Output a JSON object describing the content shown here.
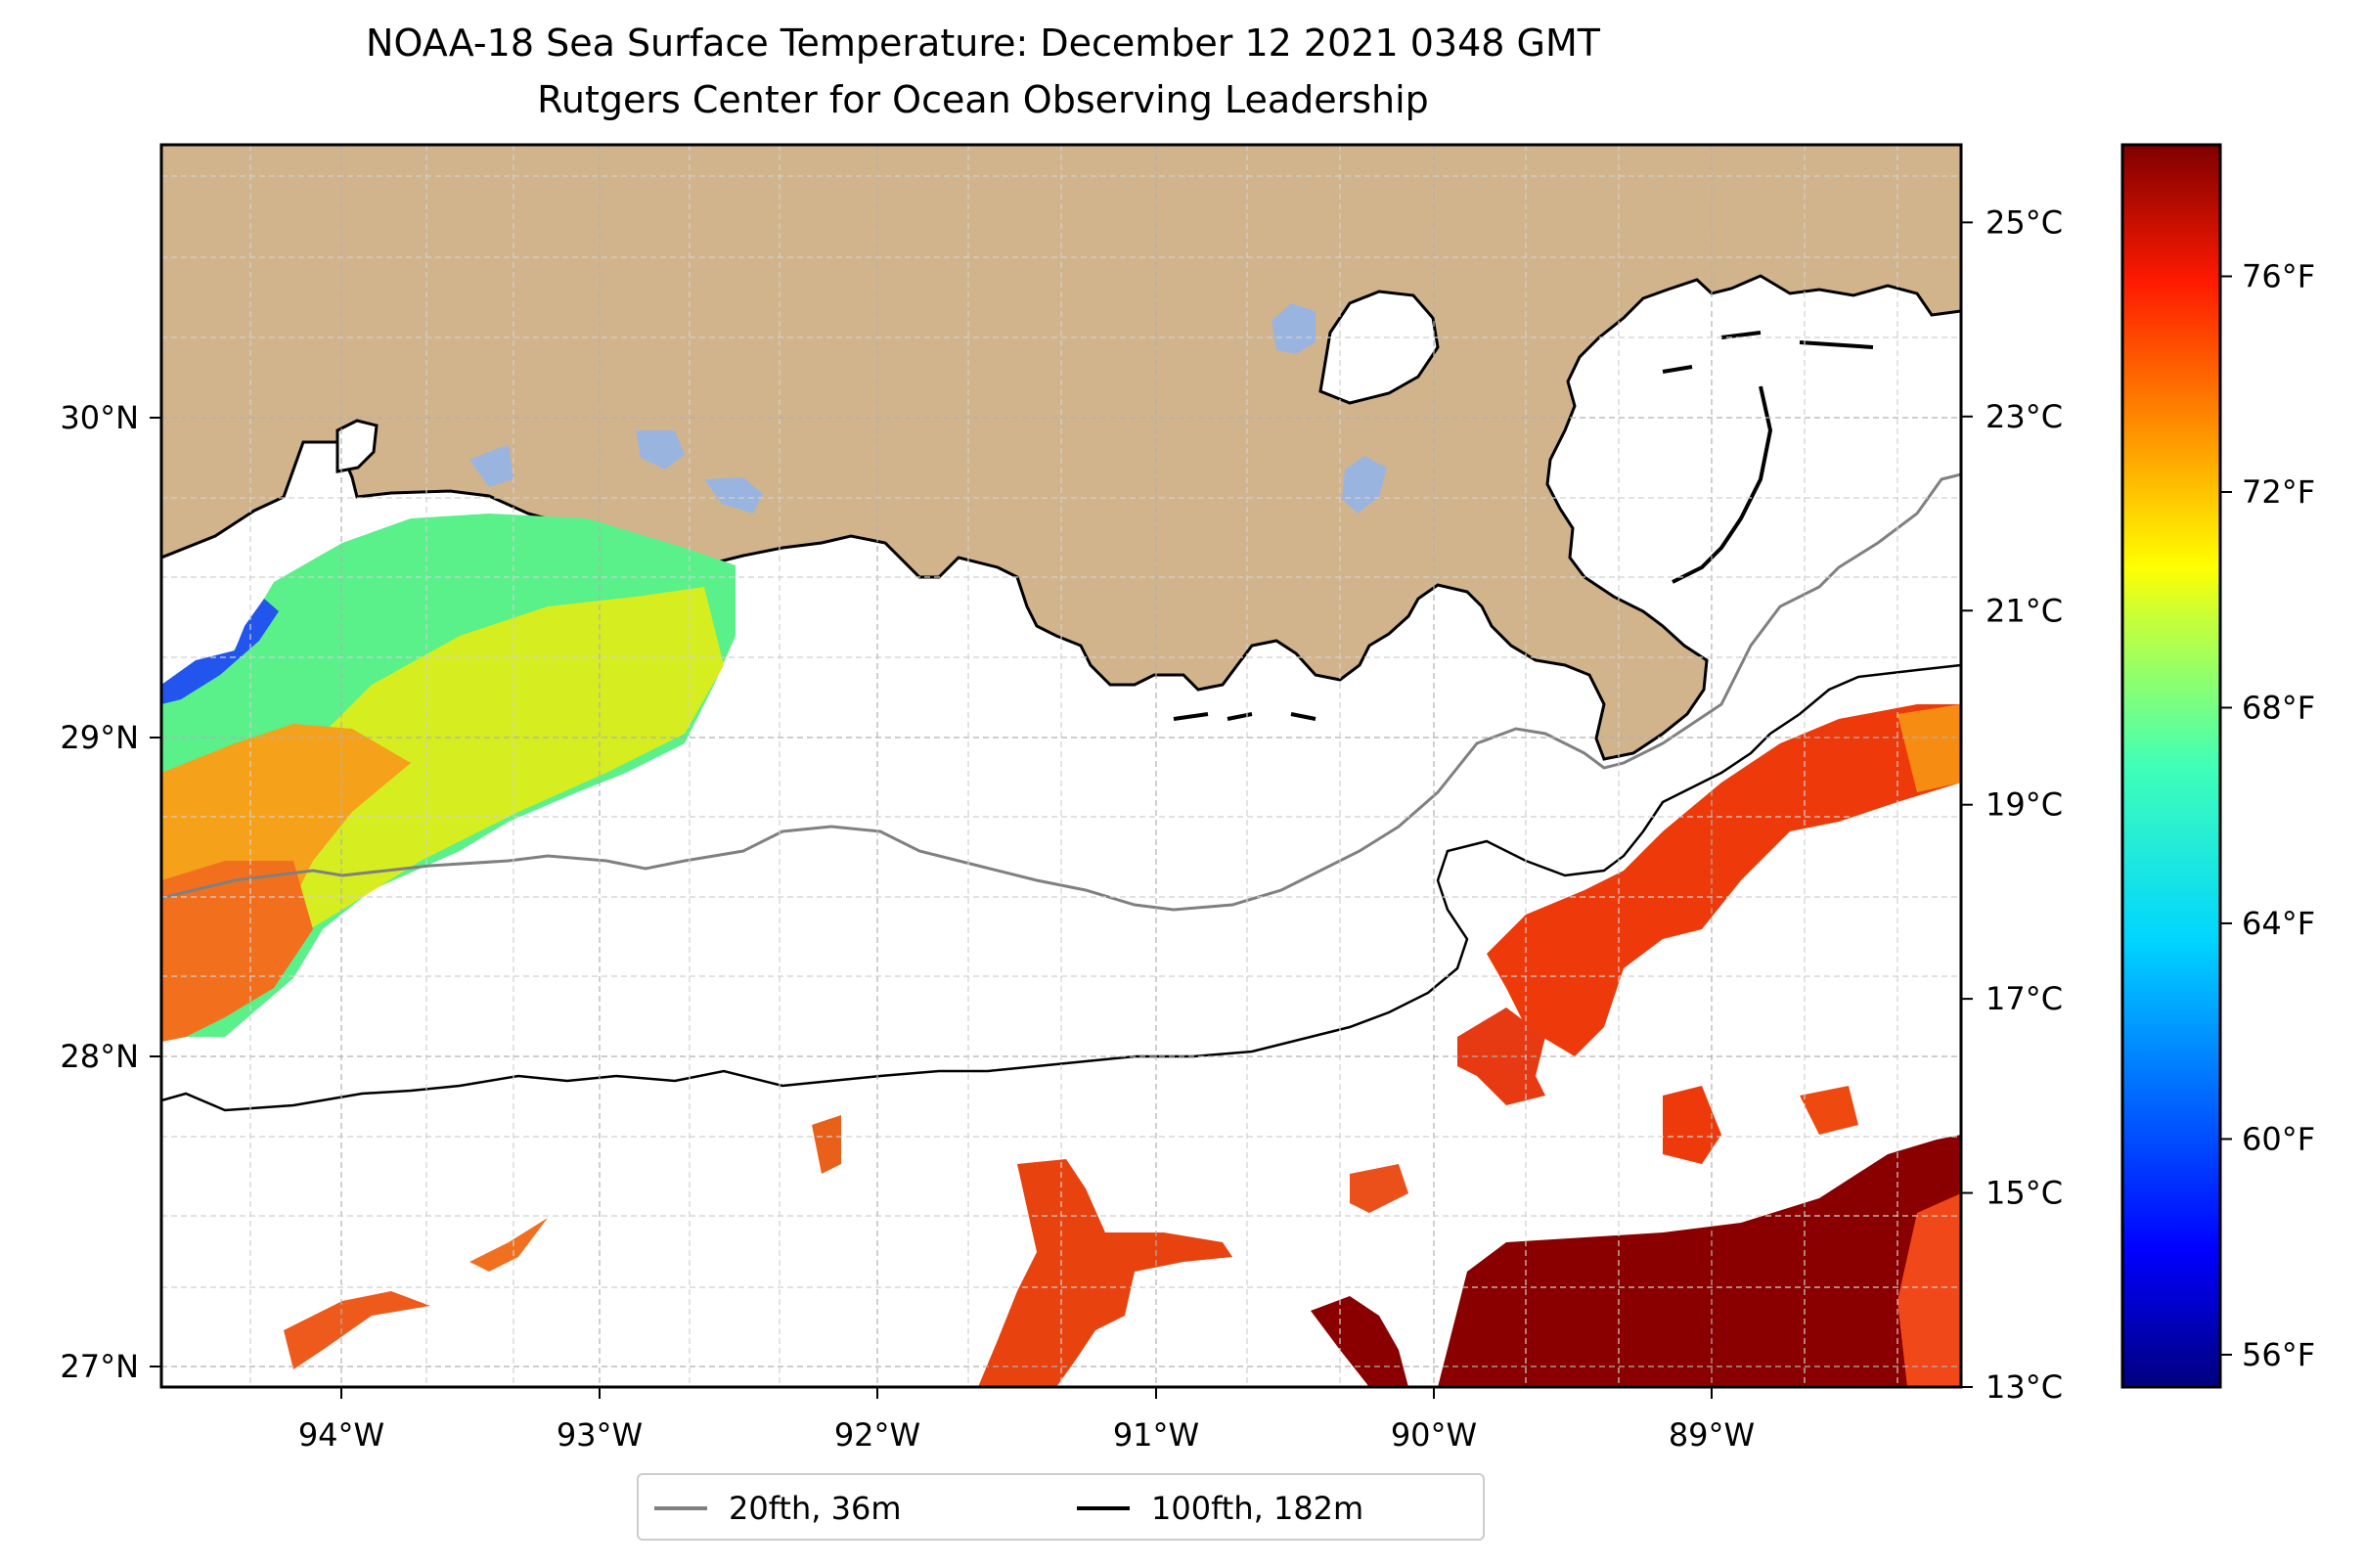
{
  "title": {
    "line1": "NOAA-18 Sea Surface Temperature: December 12 2021 0348 GMT",
    "line2": "Rutgers Center for Ocean Observing Leadership"
  },
  "map": {
    "lon_range": [
      -94.55,
      -88.05
    ],
    "lat_range": [
      26.93,
      30.85
    ],
    "lon_ticks": [
      {
        "value": -94,
        "label": "94°W"
      },
      {
        "value": -93,
        "label": "93°W"
      },
      {
        "value": -92,
        "label": "92°W"
      },
      {
        "value": -91,
        "label": "91°W"
      },
      {
        "value": -90,
        "label": "90°W"
      },
      {
        "value": -89,
        "label": "89°W"
      }
    ],
    "lat_ticks": [
      {
        "value": 30,
        "label": "30°N"
      },
      {
        "value": 29,
        "label": "29°N"
      },
      {
        "value": 28,
        "label": "28°N"
      },
      {
        "value": 27,
        "label": "27°N"
      }
    ],
    "gridlines": true,
    "colors": {
      "land": "#d2b48c",
      "lakes": "#9ab4e0",
      "coastline": "#000000",
      "grid": "#b0b0b0"
    }
  },
  "colorbar": {
    "colormap": "jet",
    "celsius_ticks": [
      "25°C",
      "23°C",
      "21°C",
      "19°C",
      "17°C",
      "15°C",
      "13°C"
    ],
    "celsius_values": [
      25,
      23,
      21,
      19,
      17,
      15,
      13
    ],
    "fahrenheit_ticks": [
      "76°F",
      "72°F",
      "68°F",
      "64°F",
      "60°F",
      "56°F"
    ],
    "fahrenheit_values": [
      76,
      72,
      68,
      64,
      60,
      56
    ],
    "celsius_range": [
      13,
      25.8
    ]
  },
  "legend": {
    "items": [
      {
        "label": "20fth, 36m",
        "color": "#808080"
      },
      {
        "label": "100fth, 182m",
        "color": "#000000"
      }
    ]
  }
}
